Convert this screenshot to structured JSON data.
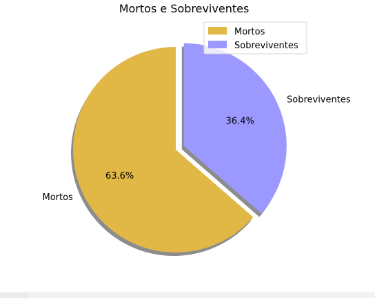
{
  "chart_data": {
    "type": "pie",
    "title": "Mortos e Sobreviventes",
    "slices": [
      {
        "label": "Mortos",
        "value": 63.6,
        "pct_label": "63.6%",
        "color": "#e1b746",
        "exploded": false
      },
      {
        "label": "Sobreviventes",
        "value": 36.4,
        "pct_label": "36.4%",
        "color": "#9b99ff",
        "exploded": true
      }
    ],
    "start_angle_deg": 90,
    "direction": "counterclockwise",
    "shadow": true,
    "legend": {
      "position": "upper-right",
      "entries": [
        "Mortos",
        "Sobreviventes"
      ]
    }
  }
}
